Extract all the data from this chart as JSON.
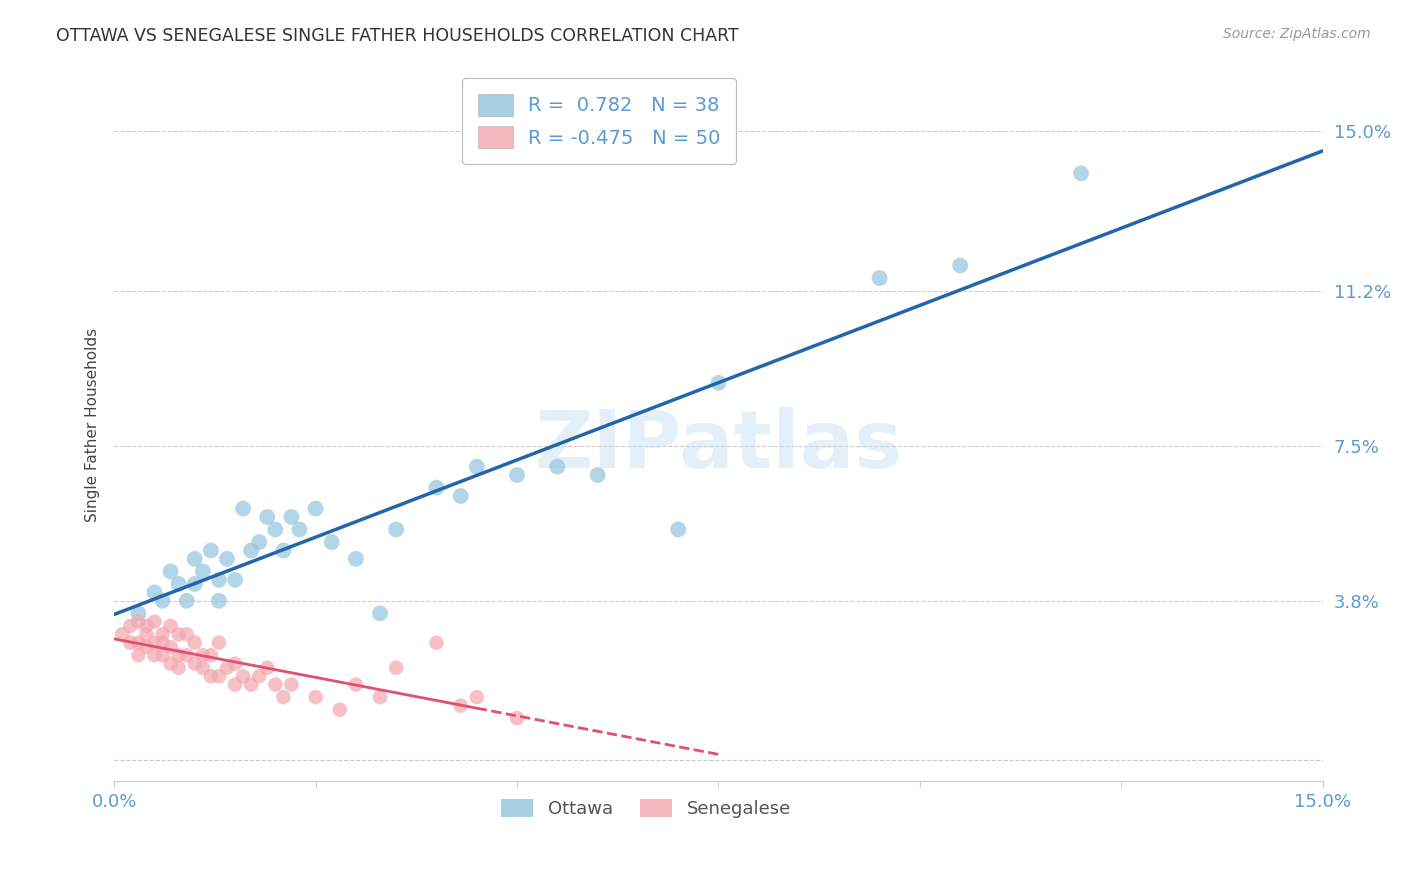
{
  "title": "OTTAWA VS SENEGALESE SINGLE FATHER HOUSEHOLDS CORRELATION CHART",
  "source": "Source: ZipAtlas.com",
  "ylabel": "Single Father Households",
  "xlim": [
    0.0,
    0.15
  ],
  "ylim": [
    -0.005,
    0.165
  ],
  "ottawa_color": "#92c5de",
  "senegalese_color": "#f4a6b0",
  "ottawa_line_color": "#2166ac",
  "senegalese_line_color": "#e05070",
  "legend_ottawa_label": "R =  0.782   N = 38",
  "legend_senegalese_label": "R = -0.475   N = 50",
  "watermark_text": "ZIPatlas",
  "background_color": "#ffffff",
  "grid_color": "#cccccc",
  "axis_color": "#5b9bd5",
  "ottawa_points": [
    [
      0.003,
      0.035
    ],
    [
      0.005,
      0.04
    ],
    [
      0.006,
      0.038
    ],
    [
      0.007,
      0.045
    ],
    [
      0.008,
      0.042
    ],
    [
      0.009,
      0.038
    ],
    [
      0.01,
      0.048
    ],
    [
      0.01,
      0.042
    ],
    [
      0.011,
      0.045
    ],
    [
      0.012,
      0.05
    ],
    [
      0.013,
      0.043
    ],
    [
      0.013,
      0.038
    ],
    [
      0.014,
      0.048
    ],
    [
      0.015,
      0.043
    ],
    [
      0.016,
      0.06
    ],
    [
      0.017,
      0.05
    ],
    [
      0.018,
      0.052
    ],
    [
      0.019,
      0.058
    ],
    [
      0.02,
      0.055
    ],
    [
      0.021,
      0.05
    ],
    [
      0.022,
      0.058
    ],
    [
      0.023,
      0.055
    ],
    [
      0.025,
      0.06
    ],
    [
      0.027,
      0.052
    ],
    [
      0.03,
      0.048
    ],
    [
      0.033,
      0.035
    ],
    [
      0.035,
      0.055
    ],
    [
      0.04,
      0.065
    ],
    [
      0.043,
      0.063
    ],
    [
      0.045,
      0.07
    ],
    [
      0.05,
      0.068
    ],
    [
      0.055,
      0.07
    ],
    [
      0.06,
      0.068
    ],
    [
      0.07,
      0.055
    ],
    [
      0.075,
      0.09
    ],
    [
      0.095,
      0.115
    ],
    [
      0.105,
      0.118
    ],
    [
      0.12,
      0.14
    ]
  ],
  "senegalese_points": [
    [
      0.001,
      0.03
    ],
    [
      0.002,
      0.028
    ],
    [
      0.002,
      0.032
    ],
    [
      0.003,
      0.033
    ],
    [
      0.003,
      0.028
    ],
    [
      0.003,
      0.025
    ],
    [
      0.004,
      0.032
    ],
    [
      0.004,
      0.03
    ],
    [
      0.004,
      0.027
    ],
    [
      0.005,
      0.033
    ],
    [
      0.005,
      0.028
    ],
    [
      0.005,
      0.025
    ],
    [
      0.006,
      0.03
    ],
    [
      0.006,
      0.028
    ],
    [
      0.006,
      0.025
    ],
    [
      0.007,
      0.032
    ],
    [
      0.007,
      0.027
    ],
    [
      0.007,
      0.023
    ],
    [
      0.008,
      0.03
    ],
    [
      0.008,
      0.025
    ],
    [
      0.008,
      0.022
    ],
    [
      0.009,
      0.03
    ],
    [
      0.009,
      0.025
    ],
    [
      0.01,
      0.028
    ],
    [
      0.01,
      0.023
    ],
    [
      0.011,
      0.025
    ],
    [
      0.011,
      0.022
    ],
    [
      0.012,
      0.025
    ],
    [
      0.012,
      0.02
    ],
    [
      0.013,
      0.028
    ],
    [
      0.013,
      0.02
    ],
    [
      0.014,
      0.022
    ],
    [
      0.015,
      0.023
    ],
    [
      0.015,
      0.018
    ],
    [
      0.016,
      0.02
    ],
    [
      0.017,
      0.018
    ],
    [
      0.018,
      0.02
    ],
    [
      0.019,
      0.022
    ],
    [
      0.02,
      0.018
    ],
    [
      0.021,
      0.015
    ],
    [
      0.022,
      0.018
    ],
    [
      0.025,
      0.015
    ],
    [
      0.028,
      0.012
    ],
    [
      0.03,
      0.018
    ],
    [
      0.033,
      0.015
    ],
    [
      0.035,
      0.022
    ],
    [
      0.04,
      0.028
    ],
    [
      0.043,
      0.013
    ],
    [
      0.045,
      0.015
    ],
    [
      0.05,
      0.01
    ]
  ],
  "ottawa_line_x": [
    0.0,
    0.15
  ],
  "ottawa_line_slope": 0.95,
  "ottawa_line_intercept": 0.03,
  "senegalese_line_x_start": 0.0,
  "senegalese_line_x_end": 0.075,
  "senegalese_line_slope": -0.22,
  "senegalese_line_intercept": 0.03
}
